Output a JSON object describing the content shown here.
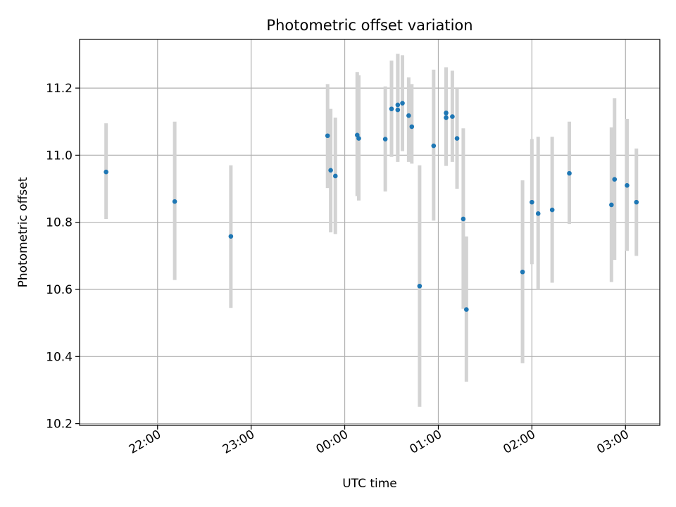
{
  "chart_data": {
    "type": "scatter",
    "title": "Photometric offset variation",
    "xlabel": "UTC time",
    "ylabel": "Photometric offset",
    "x_tick_labels": [
      "22:00",
      "23:00",
      "00:00",
      "01:00",
      "02:00",
      "03:00"
    ],
    "y_tick_labels": [
      "10.2",
      "10.4",
      "10.6",
      "10.8",
      "11.0",
      "11.2"
    ],
    "y_ticks": [
      10.2,
      10.4,
      10.6,
      10.8,
      11.0,
      11.2
    ],
    "xlim": [
      "21:10",
      "03:22"
    ],
    "ylim": [
      10.195,
      11.345
    ],
    "grid": true,
    "legend": "none",
    "colors": {
      "marker": "#1f77b4",
      "errorbar": "#d3d3d3",
      "grid": "#b0b0b0"
    },
    "series": [
      {
        "x": [
          "21:27",
          "22:11",
          "22:47",
          "23:49",
          "23:51",
          "23:54",
          "00:08",
          "00:09",
          "00:26",
          "00:30",
          "00:34",
          "00:34",
          "00:37",
          "00:41",
          "00:43",
          "00:48",
          "00:57",
          "01:05",
          "01:05",
          "01:09",
          "01:12",
          "01:16",
          "01:18",
          "01:54",
          "02:00",
          "02:04",
          "02:13",
          "02:24",
          "02:51",
          "02:53",
          "03:01",
          "03:07"
        ],
        "y": [
          10.95,
          10.862,
          10.758,
          11.058,
          10.955,
          10.938,
          11.06,
          11.05,
          11.048,
          11.138,
          11.135,
          11.15,
          11.155,
          11.118,
          11.085,
          10.61,
          11.028,
          11.112,
          11.126,
          11.115,
          11.05,
          10.81,
          10.54,
          10.652,
          10.86,
          10.826,
          10.837,
          10.946,
          10.852,
          10.928,
          10.91,
          10.86
        ],
        "err_low": [
          10.81,
          10.628,
          10.545,
          10.902,
          10.77,
          10.765,
          10.878,
          10.865,
          10.892,
          10.995,
          10.98,
          11.0,
          11.012,
          10.98,
          10.975,
          10.25,
          10.805,
          10.968,
          10.985,
          10.98,
          10.9,
          10.542,
          10.325,
          10.38,
          10.675,
          10.6,
          10.62,
          10.795,
          10.622,
          10.688,
          10.715,
          10.7
        ],
        "err_high": [
          11.095,
          11.1,
          10.97,
          11.212,
          11.138,
          11.112,
          11.248,
          11.238,
          11.205,
          11.282,
          11.302,
          11.302,
          11.298,
          11.232,
          11.212,
          10.97,
          11.255,
          11.262,
          11.262,
          11.252,
          11.2,
          11.08,
          10.758,
          10.925,
          11.048,
          11.055,
          11.055,
          11.1,
          11.083,
          11.17,
          11.108,
          11.02
        ]
      }
    ]
  }
}
